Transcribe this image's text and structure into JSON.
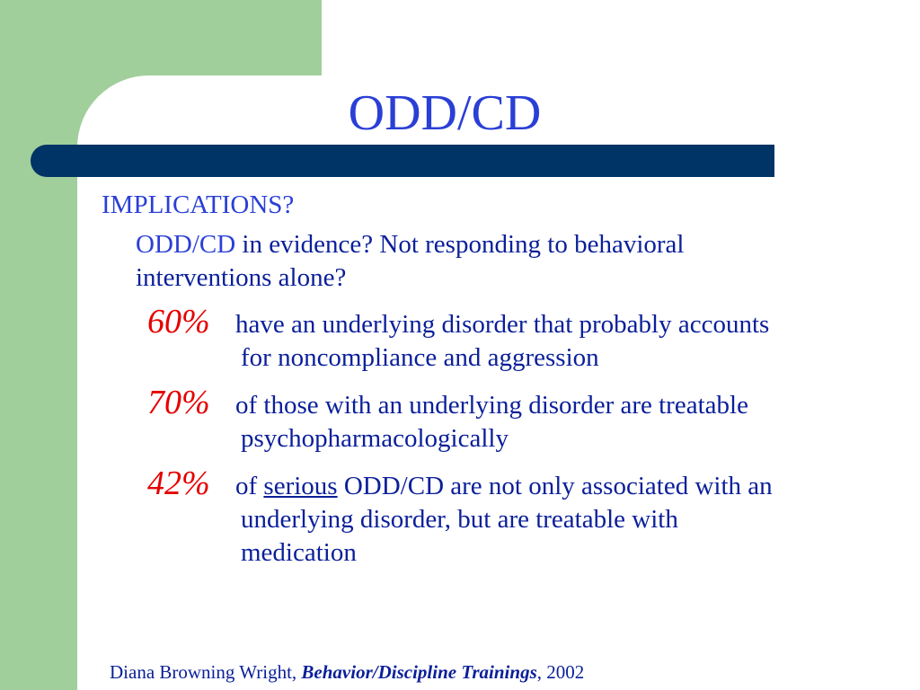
{
  "slide": {
    "title": "ODD/CD",
    "heading": "IMPLICATIONS?",
    "question_lead": "ODD/CD",
    "question_rest_line1": " in evidence?  Not responding to behavioral",
    "question_line2": "interventions alone?",
    "stats": [
      {
        "pct": "60%",
        "line1": "have an underlying disorder that probably accounts",
        "line2": "for noncompliance and aggression"
      },
      {
        "pct": "70%",
        "line1": "of those with an underlying disorder are treatable",
        "line2": "psychopharmacologically"
      },
      {
        "pct": "42%",
        "line1_pre": "of ",
        "line1_underlined": "serious",
        "line1_post": " ODD/CD are not only associated with an",
        "line2": "underlying disorder, but are treatable with",
        "line3": "medication"
      }
    ],
    "footer": {
      "author": "Diana Browning Wright, ",
      "work": "Behavior/Discipline Trainings",
      "year": ", 2002"
    }
  },
  "colors": {
    "green_panel": "#a0cf9b",
    "title_blue": "#2a3fd6",
    "body_blue": "#0a1f99",
    "rule_navy": "#003366",
    "percent_red": "#e60000"
  }
}
